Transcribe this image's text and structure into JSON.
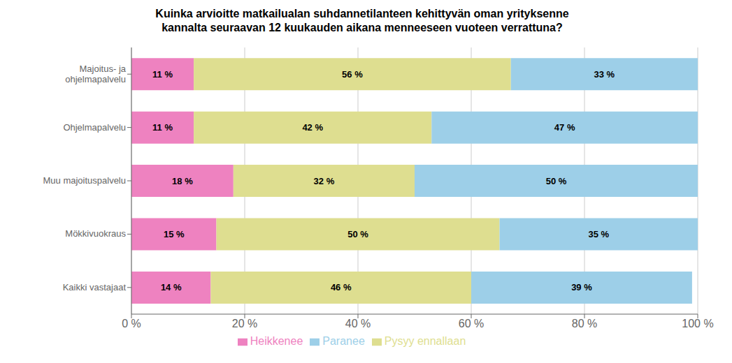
{
  "chart_data": {
    "type": "bar",
    "orientation": "horizontal",
    "stacked": true,
    "title": "Kuinka arvioitte matkailualan suhdannetilanteen kehittyvän oman yrityksenne\nkannalta seuraavan 12 kuukauden aikana menneeseen vuoteen verrattuna?",
    "categories": [
      "Majoitus- ja\nohjelmapalvelu",
      "Ohjelmapalvelu",
      "Muu majoituspalvelu",
      "Mökkivuokraus",
      "Kaikki vastajaat"
    ],
    "series": [
      {
        "name": "Heikkenee",
        "color": "#EE82C0",
        "values": [
          11,
          11,
          18,
          15,
          14
        ],
        "value_labels": [
          "11 %",
          "11 %",
          "18 %",
          "15 %",
          "14 %"
        ]
      },
      {
        "name": "Pysyy ennallaan",
        "color": "#DEDE90",
        "values": [
          56,
          42,
          32,
          50,
          46
        ],
        "value_labels": [
          "56 %",
          "42 %",
          "32 %",
          "50 %",
          "46 %"
        ]
      },
      {
        "name": "Paranee",
        "color": "#9DCFE8",
        "values": [
          33,
          47,
          50,
          35,
          39
        ],
        "value_labels": [
          "33 %",
          "47 %",
          "50 %",
          "35 %",
          "39 %"
        ]
      }
    ],
    "xlim": [
      0,
      100
    ],
    "xticks": [
      {
        "value": 0,
        "label": "0 %"
      },
      {
        "value": 20,
        "label": "20 %"
      },
      {
        "value": 40,
        "label": "40 %"
      },
      {
        "value": 60,
        "label": "60 %"
      },
      {
        "value": 80,
        "label": "80 %"
      },
      {
        "value": 100,
        "label": "100 %"
      }
    ],
    "grid": true,
    "data_labels": true,
    "legend": "bottom"
  }
}
